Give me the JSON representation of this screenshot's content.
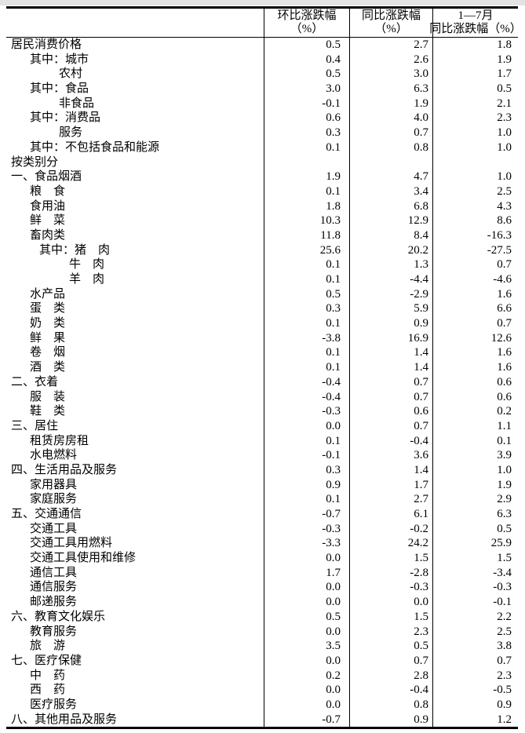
{
  "table": {
    "header": {
      "col1_line1": "环比涨跌幅",
      "col1_line2": "（%）",
      "col2_line1": "同比涨跌幅",
      "col2_line2": "（%）",
      "col3_line1": "1—7月",
      "col3_line2": "同比涨跌幅（%）"
    },
    "rows": [
      {
        "label": "居民消费价格",
        "indent": 0,
        "mom": "0.5",
        "yoy": "2.7",
        "ytd": "1.8"
      },
      {
        "label": "其中：城市",
        "indent": 1,
        "mom": "0.4",
        "yoy": "2.6",
        "ytd": "1.9"
      },
      {
        "label": "农村",
        "indent": 3,
        "mom": "0.5",
        "yoy": "3.0",
        "ytd": "1.7"
      },
      {
        "label": "其中：食品",
        "indent": 1,
        "mom": "3.0",
        "yoy": "6.3",
        "ytd": "0.5"
      },
      {
        "label": "非食品",
        "indent": 3,
        "mom": "-0.1",
        "yoy": "1.9",
        "ytd": "2.1"
      },
      {
        "label": "其中：消费品",
        "indent": 1,
        "mom": "0.6",
        "yoy": "4.0",
        "ytd": "2.3"
      },
      {
        "label": "服务",
        "indent": 3,
        "mom": "0.3",
        "yoy": "0.7",
        "ytd": "1.0"
      },
      {
        "label": "其中：不包括食品和能源",
        "indent": 1,
        "mom": "0.1",
        "yoy": "0.8",
        "ytd": "1.0"
      },
      {
        "label": "按类别分",
        "indent": 0,
        "mom": "",
        "yoy": "",
        "ytd": ""
      },
      {
        "label": "一、食品烟酒",
        "indent": 0,
        "mom": "1.9",
        "yoy": "4.7",
        "ytd": "1.0"
      },
      {
        "label": "粮　食",
        "indent": 1,
        "mom": "0.1",
        "yoy": "3.4",
        "ytd": "2.5"
      },
      {
        "label": "食用油",
        "indent": 1,
        "mom": "1.8",
        "yoy": "6.8",
        "ytd": "4.3"
      },
      {
        "label": "鲜　菜",
        "indent": 1,
        "mom": "10.3",
        "yoy": "12.9",
        "ytd": "8.6"
      },
      {
        "label": "畜肉类",
        "indent": 1,
        "mom": "11.8",
        "yoy": "8.4",
        "ytd": "-16.3"
      },
      {
        "label": "其中：猪　肉",
        "indent": 2,
        "mom": "25.6",
        "yoy": "20.2",
        "ytd": "-27.5"
      },
      {
        "label": "牛　肉",
        "indent": 4,
        "mom": "0.1",
        "yoy": "1.3",
        "ytd": "0.7"
      },
      {
        "label": "羊　肉",
        "indent": 4,
        "mom": "0.1",
        "yoy": "-4.4",
        "ytd": "-4.6"
      },
      {
        "label": "水产品",
        "indent": 1,
        "mom": "0.5",
        "yoy": "-2.9",
        "ytd": "1.6"
      },
      {
        "label": "蛋　类",
        "indent": 1,
        "mom": "0.3",
        "yoy": "5.9",
        "ytd": "6.6"
      },
      {
        "label": "奶　类",
        "indent": 1,
        "mom": "0.1",
        "yoy": "0.9",
        "ytd": "0.7"
      },
      {
        "label": "鲜　果",
        "indent": 1,
        "mom": "-3.8",
        "yoy": "16.9",
        "ytd": "12.6"
      },
      {
        "label": "卷　烟",
        "indent": 1,
        "mom": "0.1",
        "yoy": "1.4",
        "ytd": "1.6"
      },
      {
        "label": "酒　类",
        "indent": 1,
        "mom": "0.1",
        "yoy": "1.4",
        "ytd": "1.6"
      },
      {
        "label": "二、衣着",
        "indent": 0,
        "mom": "-0.4",
        "yoy": "0.7",
        "ytd": "0.6"
      },
      {
        "label": "服　装",
        "indent": 1,
        "mom": "-0.4",
        "yoy": "0.7",
        "ytd": "0.6"
      },
      {
        "label": "鞋　类",
        "indent": 1,
        "mom": "-0.3",
        "yoy": "0.6",
        "ytd": "0.2"
      },
      {
        "label": "三、居住",
        "indent": 0,
        "mom": "0.0",
        "yoy": "0.7",
        "ytd": "1.1"
      },
      {
        "label": "租赁房房租",
        "indent": 1,
        "mom": "0.1",
        "yoy": "-0.4",
        "ytd": "0.1"
      },
      {
        "label": "水电燃料",
        "indent": 1,
        "mom": "-0.1",
        "yoy": "3.6",
        "ytd": "3.9"
      },
      {
        "label": "四、生活用品及服务",
        "indent": 0,
        "mom": "0.3",
        "yoy": "1.4",
        "ytd": "1.0"
      },
      {
        "label": "家用器具",
        "indent": 1,
        "mom": "0.9",
        "yoy": "1.7",
        "ytd": "1.9"
      },
      {
        "label": "家庭服务",
        "indent": 1,
        "mom": "0.1",
        "yoy": "2.7",
        "ytd": "2.9"
      },
      {
        "label": "五、交通通信",
        "indent": 0,
        "mom": "-0.7",
        "yoy": "6.1",
        "ytd": "6.3"
      },
      {
        "label": "交通工具",
        "indent": 1,
        "mom": "-0.3",
        "yoy": "-0.2",
        "ytd": "0.5"
      },
      {
        "label": "交通工具用燃料",
        "indent": 1,
        "mom": "-3.3",
        "yoy": "24.2",
        "ytd": "25.9"
      },
      {
        "label": "交通工具使用和维修",
        "indent": 1,
        "mom": "0.0",
        "yoy": "1.5",
        "ytd": "1.5"
      },
      {
        "label": "通信工具",
        "indent": 1,
        "mom": "1.7",
        "yoy": "-2.8",
        "ytd": "-3.4"
      },
      {
        "label": "通信服务",
        "indent": 1,
        "mom": "0.0",
        "yoy": "-0.3",
        "ytd": "-0.3"
      },
      {
        "label": "邮递服务",
        "indent": 1,
        "mom": "0.0",
        "yoy": "0.0",
        "ytd": "-0.1"
      },
      {
        "label": "六、教育文化娱乐",
        "indent": 0,
        "mom": "0.5",
        "yoy": "1.5",
        "ytd": "2.2"
      },
      {
        "label": "教育服务",
        "indent": 1,
        "mom": "0.0",
        "yoy": "2.3",
        "ytd": "2.5"
      },
      {
        "label": "旅　游",
        "indent": 1,
        "mom": "3.5",
        "yoy": "0.5",
        "ytd": "3.8"
      },
      {
        "label": "七、医疗保健",
        "indent": 0,
        "mom": "0.0",
        "yoy": "0.7",
        "ytd": "0.7"
      },
      {
        "label": "中　药",
        "indent": 1,
        "mom": "0.2",
        "yoy": "2.8",
        "ytd": "2.3"
      },
      {
        "label": "西　药",
        "indent": 1,
        "mom": "0.0",
        "yoy": "-0.4",
        "ytd": "-0.5"
      },
      {
        "label": "医疗服务",
        "indent": 1,
        "mom": "0.0",
        "yoy": "0.8",
        "ytd": "0.9"
      },
      {
        "label": "八、其他用品及服务",
        "indent": 0,
        "mom": "-0.7",
        "yoy": "0.9",
        "ytd": "1.2"
      }
    ]
  }
}
